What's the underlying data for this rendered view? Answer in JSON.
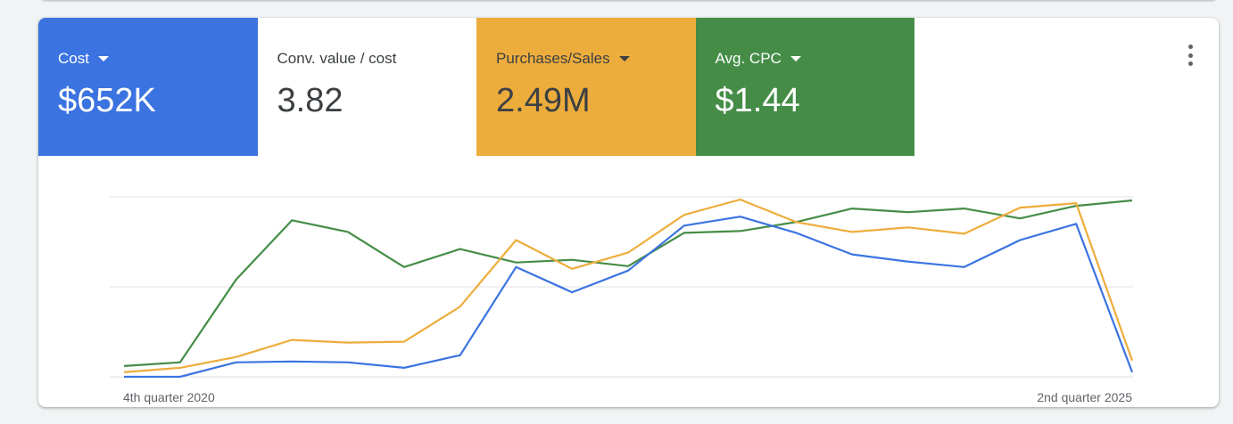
{
  "metrics": [
    {
      "label": "Cost",
      "value": "$652K",
      "has_dropdown": true,
      "color": "#3b73e0"
    },
    {
      "label": "Conv. value / cost",
      "value": "3.82",
      "has_dropdown": false,
      "color": "#ffffff"
    },
    {
      "label": "Purchases/Sales",
      "value": "2.49M",
      "has_dropdown": true,
      "color": "#edad3c"
    },
    {
      "label": "Avg. CPC",
      "value": "$1.44",
      "has_dropdown": true,
      "color": "#458d47"
    }
  ],
  "chart_data": {
    "type": "line",
    "x_start_label": "4th quarter 2020",
    "x_end_label": "2nd quarter 2025",
    "grid": true,
    "ylim": [
      0,
      100
    ],
    "series": [
      {
        "metric": "Cost",
        "color": "#3b73e0",
        "values": [
          0,
          0,
          8,
          8.5,
          8,
          5,
          12,
          61,
          47,
          59,
          84,
          89,
          80,
          68,
          64,
          61,
          76,
          85,
          2.5
        ]
      },
      {
        "metric": "Purchases/Sales",
        "color": "#edad3c",
        "values": [
          2.5,
          5,
          11,
          20.5,
          19,
          19.5,
          39,
          76,
          60,
          69,
          90,
          98.5,
          86,
          80.5,
          83,
          79.5,
          94,
          96.5,
          9
        ]
      },
      {
        "metric": "Avg. CPC",
        "color": "#458d47",
        "values": [
          6,
          8,
          54,
          87,
          80.5,
          61,
          71,
          63.5,
          65,
          61.5,
          80,
          81,
          86,
          93.5,
          91.5,
          93.5,
          88,
          95,
          98
        ]
      }
    ]
  }
}
